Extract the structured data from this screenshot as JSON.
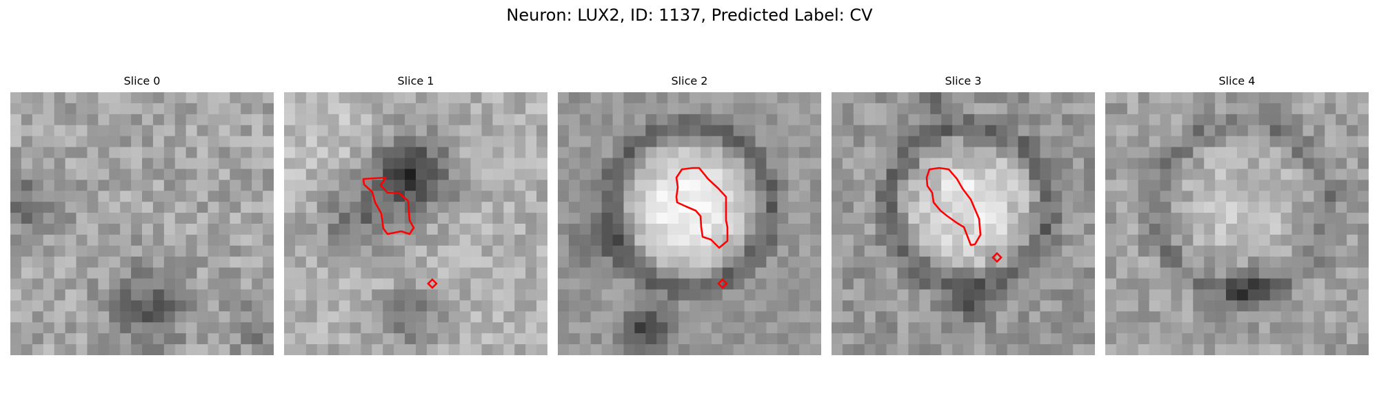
{
  "figure": {
    "title": "Neuron: LUX2, ID: 1137, Predicted Label: CV"
  },
  "colors": {
    "contour": "#ff0000",
    "background": "#ffffff"
  },
  "panels": [
    {
      "title": "Slice 0",
      "has_contour": false,
      "style": "noise"
    },
    {
      "title": "Slice 1",
      "has_contour": true,
      "style": "dark-blob"
    },
    {
      "title": "Slice 2",
      "has_contour": true,
      "style": "bright-cell"
    },
    {
      "title": "Slice 3",
      "has_contour": true,
      "style": "bright-cell-textured"
    },
    {
      "title": "Slice 4",
      "has_contour": false,
      "style": "faint-cell"
    }
  ]
}
